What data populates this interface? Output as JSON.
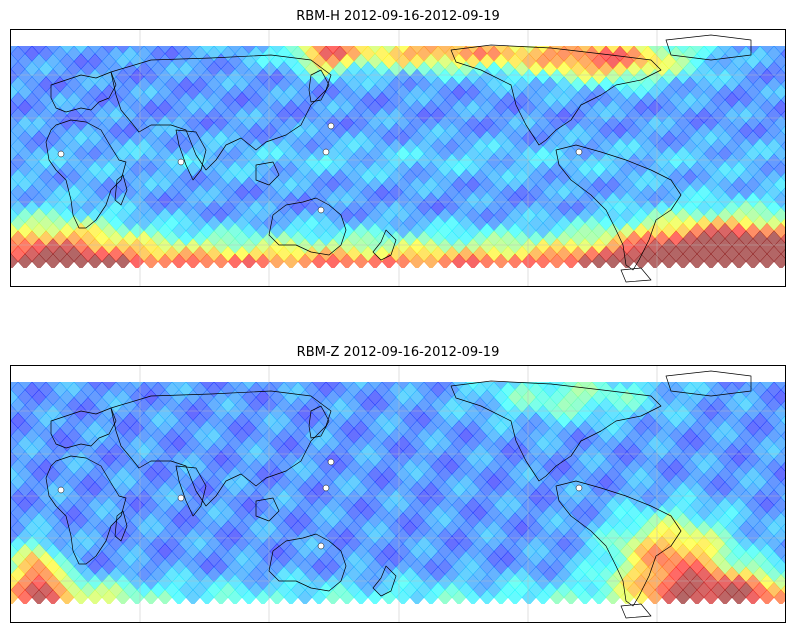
{
  "maps": [
    {
      "title": "RBM-H 2012-09-16-2012-09-19",
      "colormap": "jet (alpha 0.6)",
      "land_outlines": "coastlines",
      "gridlines": true,
      "high_zones": [
        {
          "region": "North Pacific / Kamchatka to Alaska",
          "level": "high"
        },
        {
          "region": "North Atlantic",
          "level": "high"
        },
        {
          "region": "Southern Ocean (Indian sector)",
          "level": "high"
        },
        {
          "region": "Southern Ocean (South Atlantic / Argentina)",
          "level": "very high"
        }
      ]
    },
    {
      "title": "RBM-Z 2012-09-16-2012-09-19",
      "colormap": "jet (alpha 0.6)",
      "land_outlines": "coastlines",
      "gridlines": true,
      "high_zones": [
        {
          "region": "South-west Indian Ocean (off South Africa)",
          "level": "high"
        },
        {
          "region": "South Atlantic / Argentina",
          "level": "high"
        },
        {
          "region": "North Atlantic",
          "level": "medium"
        }
      ]
    }
  ]
}
